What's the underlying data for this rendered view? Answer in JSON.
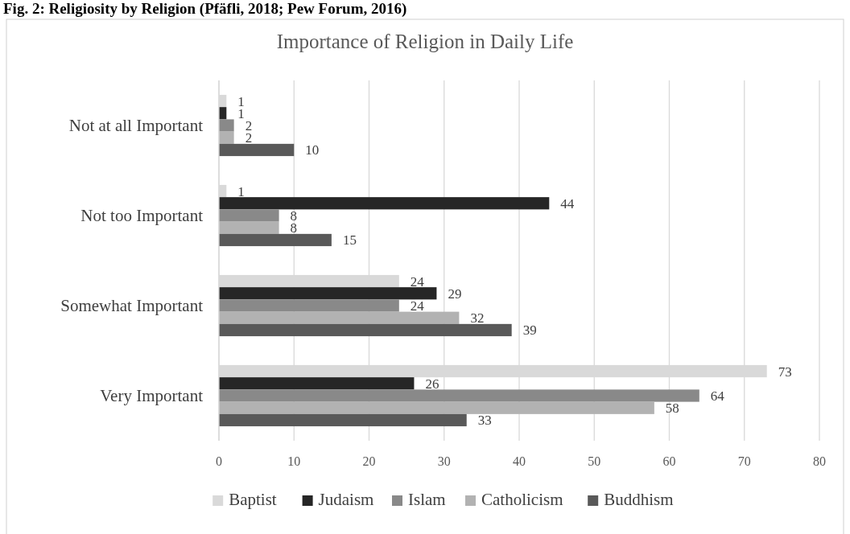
{
  "chart_data": {
    "type": "bar",
    "orientation": "horizontal",
    "title": "Importance of Religion in Daily Life",
    "annotations": [
      "Fig. 2: Religiosity by Religion (Pfäfli, 2018; Pew Forum, 2016)"
    ],
    "categories": [
      "Not at all Important",
      "Not too Important",
      "Somewhat Important",
      "Very Important"
    ],
    "series": [
      {
        "name": "Baptist",
        "color": "#d9d9d9",
        "values": [
          1,
          1,
          24,
          73
        ]
      },
      {
        "name": "Judaism",
        "color": "#262626",
        "values": [
          1,
          44,
          29,
          26
        ]
      },
      {
        "name": "Islam",
        "color": "#898989",
        "values": [
          2,
          8,
          24,
          64
        ]
      },
      {
        "name": "Catholicism",
        "color": "#b2b2b2",
        "values": [
          2,
          8,
          32,
          58
        ]
      },
      {
        "name": "Buddhism",
        "color": "#595959",
        "values": [
          10,
          15,
          39,
          33
        ]
      }
    ],
    "xlim": [
      0,
      80
    ],
    "xticks": [
      0,
      10,
      20,
      30,
      40,
      50,
      60,
      70,
      80
    ],
    "grid": "x",
    "legend": "bottom",
    "data_labels": true
  }
}
